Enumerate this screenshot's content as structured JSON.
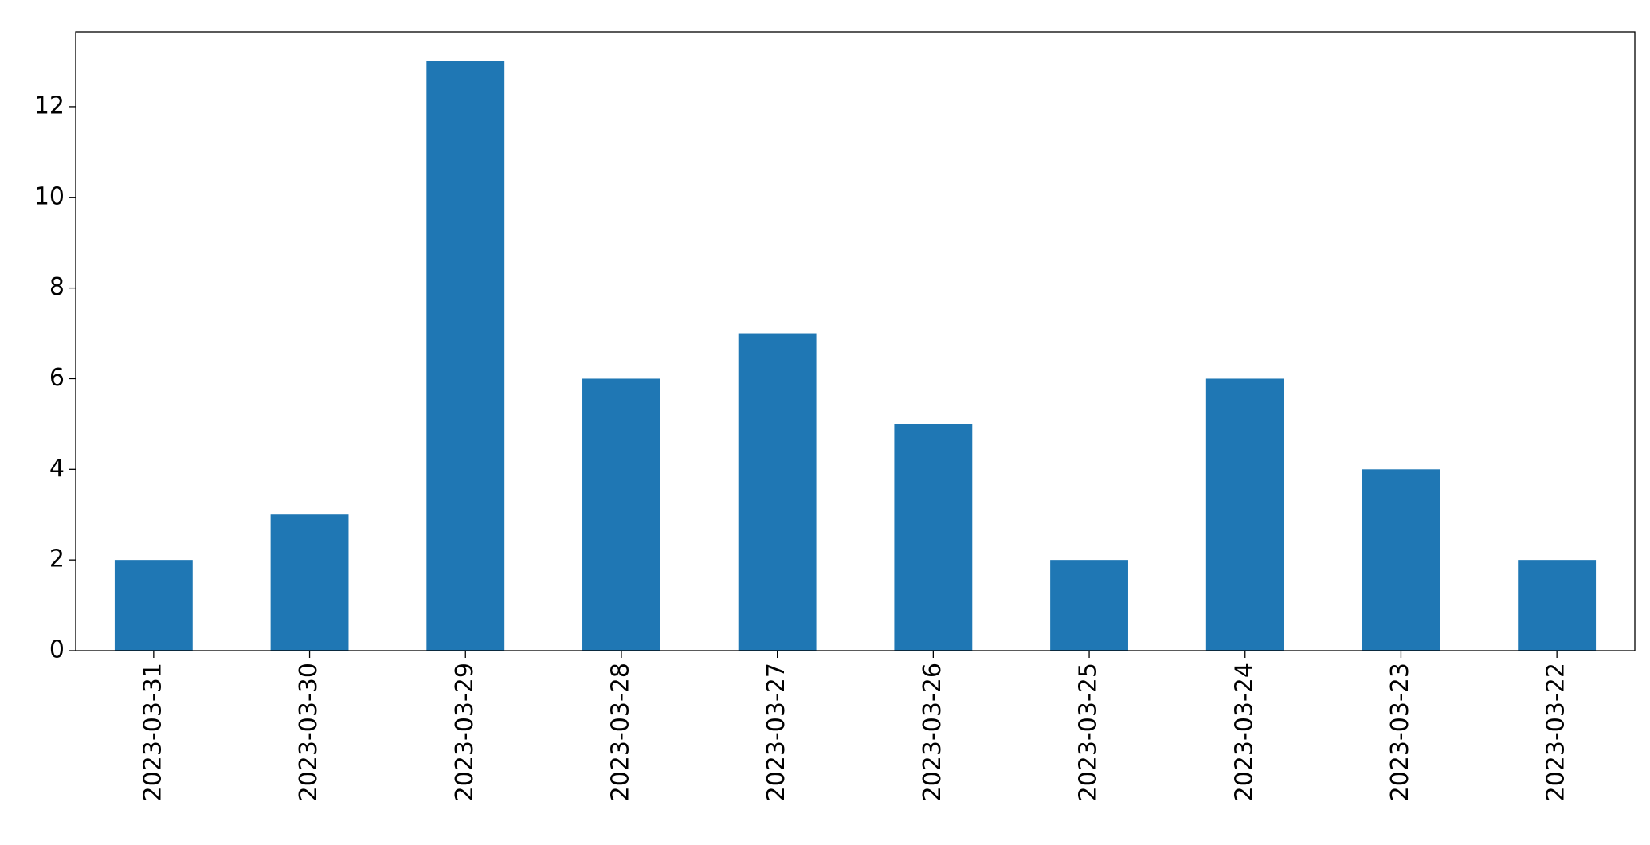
{
  "chart_data": {
    "type": "bar",
    "categories": [
      "2023-03-31",
      "2023-03-30",
      "2023-03-29",
      "2023-03-28",
      "2023-03-27",
      "2023-03-26",
      "2023-03-25",
      "2023-03-24",
      "2023-03-23",
      "2023-03-22"
    ],
    "values": [
      2,
      3,
      13,
      6,
      7,
      5,
      2,
      6,
      4,
      2
    ],
    "color": "#1f77b4",
    "ylim": [
      0,
      13.65
    ],
    "yticks": [
      0,
      2,
      4,
      6,
      8,
      10,
      12
    ],
    "grid": false
  }
}
